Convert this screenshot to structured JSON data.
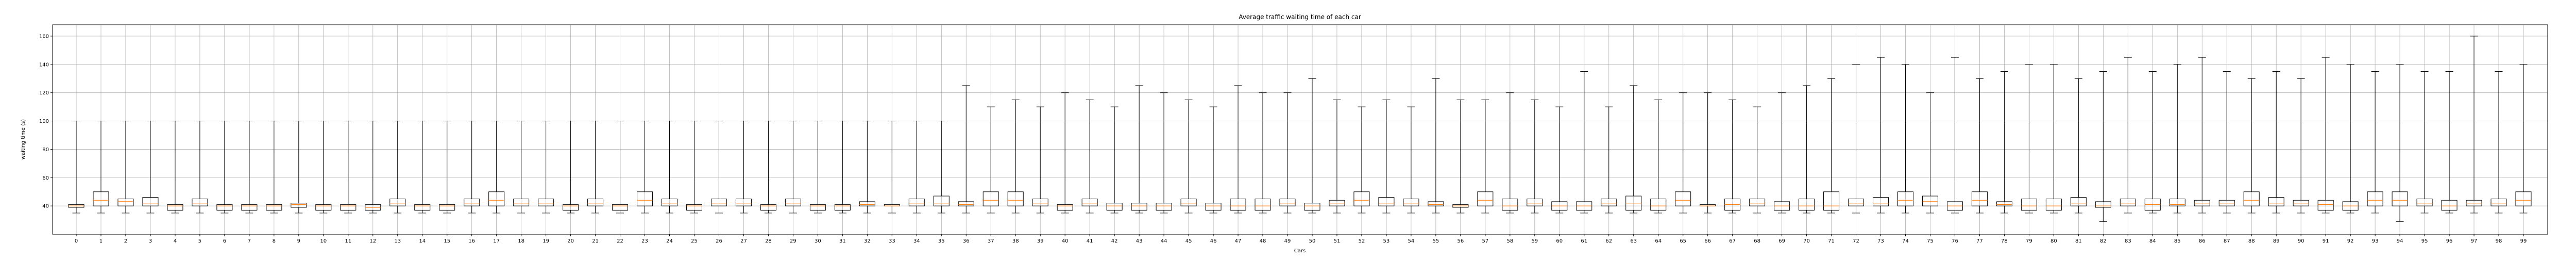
{
  "chart_data": {
    "type": "boxplot",
    "title": "Average traffic waiting time of each car",
    "xlabel": "Cars",
    "ylabel": "waiting time (s)",
    "ylim": [
      20,
      168
    ],
    "yticks": [
      40,
      60,
      80,
      100,
      120,
      140,
      160
    ],
    "grid": true,
    "categories": [
      "0",
      "1",
      "2",
      "3",
      "4",
      "5",
      "6",
      "7",
      "8",
      "9",
      "10",
      "11",
      "12",
      "13",
      "14",
      "15",
      "16",
      "17",
      "18",
      "19",
      "20",
      "21",
      "22",
      "23",
      "24",
      "25",
      "26",
      "27",
      "28",
      "29",
      "30",
      "31",
      "32",
      "33",
      "34",
      "35",
      "36",
      "37",
      "38",
      "39",
      "40",
      "41",
      "42",
      "43",
      "44",
      "45",
      "46",
      "47",
      "48",
      "49",
      "50",
      "51",
      "52",
      "53",
      "54",
      "55",
      "56",
      "57",
      "58",
      "59",
      "60",
      "61",
      "62",
      "63",
      "64",
      "65",
      "66",
      "67",
      "68",
      "69",
      "70",
      "71",
      "72",
      "73",
      "74",
      "75",
      "76",
      "77",
      "78",
      "79",
      "80",
      "81",
      "82",
      "83",
      "84",
      "85",
      "86",
      "87",
      "88",
      "89",
      "90",
      "91",
      "92",
      "93",
      "94",
      "95",
      "96",
      "97",
      "98",
      "99"
    ],
    "boxes": [
      {
        "whislo": 35,
        "q1": 39,
        "med": 40,
        "q3": 41,
        "whishi": 100
      },
      {
        "whislo": 35,
        "q1": 40,
        "med": 44,
        "q3": 50,
        "whishi": 100
      },
      {
        "whislo": 35,
        "q1": 40,
        "med": 43,
        "q3": 45,
        "whishi": 100
      },
      {
        "whislo": 35,
        "q1": 40,
        "med": 42,
        "q3": 46,
        "whishi": 100
      },
      {
        "whislo": 35,
        "q1": 37,
        "med": 40,
        "q3": 41,
        "whishi": 100
      },
      {
        "whislo": 35,
        "q1": 40,
        "med": 42,
        "q3": 45,
        "whishi": 100
      },
      {
        "whislo": 35,
        "q1": 37,
        "med": 40,
        "q3": 41,
        "whishi": 100
      },
      {
        "whislo": 35,
        "q1": 37,
        "med": 40,
        "q3": 41,
        "whishi": 100
      },
      {
        "whislo": 35,
        "q1": 37,
        "med": 40,
        "q3": 41,
        "whishi": 100
      },
      {
        "whislo": 35,
        "q1": 39,
        "med": 41,
        "q3": 42,
        "whishi": 100
      },
      {
        "whislo": 35,
        "q1": 37,
        "med": 40,
        "q3": 41,
        "whishi": 100
      },
      {
        "whislo": 35,
        "q1": 37,
        "med": 40,
        "q3": 41,
        "whishi": 100
      },
      {
        "whislo": 35,
        "q1": 37,
        "med": 39,
        "q3": 41,
        "whishi": 100
      },
      {
        "whislo": 35,
        "q1": 40,
        "med": 42,
        "q3": 45,
        "whishi": 100
      },
      {
        "whislo": 35,
        "q1": 37,
        "med": 40,
        "q3": 41,
        "whishi": 100
      },
      {
        "whislo": 35,
        "q1": 37,
        "med": 40,
        "q3": 41,
        "whishi": 100
      },
      {
        "whislo": 35,
        "q1": 40,
        "med": 42,
        "q3": 45,
        "whishi": 100
      },
      {
        "whislo": 35,
        "q1": 40,
        "med": 44,
        "q3": 50,
        "whishi": 100
      },
      {
        "whislo": 35,
        "q1": 40,
        "med": 42,
        "q3": 45,
        "whishi": 100
      },
      {
        "whislo": 35,
        "q1": 40,
        "med": 42,
        "q3": 45,
        "whishi": 100
      },
      {
        "whislo": 35,
        "q1": 37,
        "med": 40,
        "q3": 41,
        "whishi": 100
      },
      {
        "whislo": 35,
        "q1": 40,
        "med": 42,
        "q3": 45,
        "whishi": 100
      },
      {
        "whislo": 35,
        "q1": 37,
        "med": 40,
        "q3": 41,
        "whishi": 100
      },
      {
        "whislo": 35,
        "q1": 40,
        "med": 44,
        "q3": 50,
        "whishi": 100
      },
      {
        "whislo": 35,
        "q1": 40,
        "med": 42,
        "q3": 45,
        "whishi": 100
      },
      {
        "whislo": 35,
        "q1": 37,
        "med": 40,
        "q3": 41,
        "whishi": 100
      },
      {
        "whislo": 35,
        "q1": 40,
        "med": 42,
        "q3": 45,
        "whishi": 100
      },
      {
        "whislo": 35,
        "q1": 40,
        "med": 42,
        "q3": 45,
        "whishi": 100
      },
      {
        "whislo": 35,
        "q1": 37,
        "med": 40,
        "q3": 41,
        "whishi": 100
      },
      {
        "whislo": 35,
        "q1": 40,
        "med": 42,
        "q3": 45,
        "whishi": 100
      },
      {
        "whislo": 35,
        "q1": 37,
        "med": 40,
        "q3": 41,
        "whishi": 100
      },
      {
        "whislo": 35,
        "q1": 37,
        "med": 40,
        "q3": 41,
        "whishi": 100
      },
      {
        "whislo": 35,
        "q1": 40,
        "med": 41,
        "q3": 43,
        "whishi": 100
      },
      {
        "whislo": 35,
        "q1": 40,
        "med": 40,
        "q3": 41,
        "whishi": 100
      },
      {
        "whislo": 35,
        "q1": 40,
        "med": 42,
        "q3": 45,
        "whishi": 100
      },
      {
        "whislo": 35,
        "q1": 40,
        "med": 42,
        "q3": 47,
        "whishi": 100
      },
      {
        "whislo": 35,
        "q1": 40,
        "med": 41,
        "q3": 43,
        "whishi": 125
      },
      {
        "whislo": 35,
        "q1": 40,
        "med": 44,
        "q3": 50,
        "whishi": 110
      },
      {
        "whislo": 35,
        "q1": 40,
        "med": 44,
        "q3": 50,
        "whishi": 115
      },
      {
        "whislo": 35,
        "q1": 40,
        "med": 42,
        "q3": 45,
        "whishi": 110
      },
      {
        "whislo": 35,
        "q1": 37,
        "med": 40,
        "q3": 41,
        "whishi": 120
      },
      {
        "whislo": 35,
        "q1": 40,
        "med": 42,
        "q3": 45,
        "whishi": 115
      },
      {
        "whislo": 35,
        "q1": 37,
        "med": 40,
        "q3": 42,
        "whishi": 110
      },
      {
        "whislo": 35,
        "q1": 37,
        "med": 40,
        "q3": 42,
        "whishi": 125
      },
      {
        "whislo": 35,
        "q1": 37,
        "med": 40,
        "q3": 42,
        "whishi": 120
      },
      {
        "whislo": 35,
        "q1": 40,
        "med": 42,
        "q3": 45,
        "whishi": 115
      },
      {
        "whislo": 35,
        "q1": 37,
        "med": 40,
        "q3": 42,
        "whishi": 110
      },
      {
        "whislo": 35,
        "q1": 37,
        "med": 40,
        "q3": 45,
        "whishi": 125
      },
      {
        "whislo": 35,
        "q1": 37,
        "med": 40,
        "q3": 45,
        "whishi": 120
      },
      {
        "whislo": 35,
        "q1": 40,
        "med": 42,
        "q3": 45,
        "whishi": 120
      },
      {
        "whislo": 35,
        "q1": 37,
        "med": 40,
        "q3": 42,
        "whishi": 130
      },
      {
        "whislo": 35,
        "q1": 40,
        "med": 42,
        "q3": 44,
        "whishi": 115
      },
      {
        "whislo": 35,
        "q1": 40,
        "med": 44,
        "q3": 50,
        "whishi": 110
      },
      {
        "whislo": 35,
        "q1": 40,
        "med": 42,
        "q3": 46,
        "whishi": 115
      },
      {
        "whislo": 35,
        "q1": 40,
        "med": 42,
        "q3": 45,
        "whishi": 110
      },
      {
        "whislo": 35,
        "q1": 40,
        "med": 41,
        "q3": 43,
        "whishi": 130
      },
      {
        "whislo": 35,
        "q1": 39,
        "med": 40,
        "q3": 41,
        "whishi": 115
      },
      {
        "whislo": 35,
        "q1": 40,
        "med": 44,
        "q3": 50,
        "whishi": 115
      },
      {
        "whislo": 35,
        "q1": 37,
        "med": 40,
        "q3": 45,
        "whishi": 120
      },
      {
        "whislo": 35,
        "q1": 40,
        "med": 42,
        "q3": 45,
        "whishi": 115
      },
      {
        "whislo": 35,
        "q1": 37,
        "med": 40,
        "q3": 43,
        "whishi": 110
      },
      {
        "whislo": 35,
        "q1": 37,
        "med": 40,
        "q3": 43,
        "whishi": 135
      },
      {
        "whislo": 35,
        "q1": 40,
        "med": 42,
        "q3": 45,
        "whishi": 110
      },
      {
        "whislo": 35,
        "q1": 37,
        "med": 42,
        "q3": 47,
        "whishi": 125
      },
      {
        "whislo": 35,
        "q1": 37,
        "med": 40,
        "q3": 45,
        "whishi": 115
      },
      {
        "whislo": 35,
        "q1": 40,
        "med": 44,
        "q3": 50,
        "whishi": 120
      },
      {
        "whislo": 35,
        "q1": 40,
        "med": 40,
        "q3": 41,
        "whishi": 120
      },
      {
        "whislo": 35,
        "q1": 37,
        "med": 41,
        "q3": 45,
        "whishi": 115
      },
      {
        "whislo": 35,
        "q1": 40,
        "med": 42,
        "q3": 45,
        "whishi": 110
      },
      {
        "whislo": 35,
        "q1": 37,
        "med": 40,
        "q3": 43,
        "whishi": 120
      },
      {
        "whislo": 35,
        "q1": 37,
        "med": 40,
        "q3": 45,
        "whishi": 125
      },
      {
        "whislo": 35,
        "q1": 37,
        "med": 40,
        "q3": 50,
        "whishi": 130
      },
      {
        "whislo": 35,
        "q1": 40,
        "med": 42,
        "q3": 45,
        "whishi": 140
      },
      {
        "whislo": 35,
        "q1": 40,
        "med": 42,
        "q3": 46,
        "whishi": 145
      },
      {
        "whislo": 35,
        "q1": 40,
        "med": 44,
        "q3": 50,
        "whishi": 140
      },
      {
        "whislo": 35,
        "q1": 40,
        "med": 43,
        "q3": 47,
        "whishi": 120
      },
      {
        "whislo": 35,
        "q1": 37,
        "med": 40,
        "q3": 43,
        "whishi": 145
      },
      {
        "whislo": 35,
        "q1": 40,
        "med": 44,
        "q3": 50,
        "whishi": 130
      },
      {
        "whislo": 35,
        "q1": 40,
        "med": 41,
        "q3": 43,
        "whishi": 135
      },
      {
        "whislo": 35,
        "q1": 37,
        "med": 40,
        "q3": 45,
        "whishi": 140
      },
      {
        "whislo": 35,
        "q1": 37,
        "med": 40,
        "q3": 45,
        "whishi": 140
      },
      {
        "whislo": 35,
        "q1": 40,
        "med": 42,
        "q3": 46,
        "whishi": 130
      },
      {
        "whislo": 29,
        "q1": 39,
        "med": 40,
        "q3": 43,
        "whishi": 135
      },
      {
        "whislo": 35,
        "q1": 40,
        "med": 42,
        "q3": 45,
        "whishi": 145
      },
      {
        "whislo": 35,
        "q1": 37,
        "med": 41,
        "q3": 45,
        "whishi": 135
      },
      {
        "whislo": 35,
        "q1": 40,
        "med": 41,
        "q3": 45,
        "whishi": 140
      },
      {
        "whislo": 35,
        "q1": 40,
        "med": 42,
        "q3": 44,
        "whishi": 145
      },
      {
        "whislo": 35,
        "q1": 40,
        "med": 42,
        "q3": 44,
        "whishi": 135
      },
      {
        "whislo": 35,
        "q1": 40,
        "med": 44,
        "q3": 50,
        "whishi": 130
      },
      {
        "whislo": 35,
        "q1": 40,
        "med": 42,
        "q3": 46,
        "whishi": 135
      },
      {
        "whislo": 35,
        "q1": 40,
        "med": 42,
        "q3": 44,
        "whishi": 130
      },
      {
        "whislo": 35,
        "q1": 37,
        "med": 41,
        "q3": 44,
        "whishi": 145
      },
      {
        "whislo": 35,
        "q1": 37,
        "med": 40,
        "q3": 43,
        "whishi": 140
      },
      {
        "whislo": 35,
        "q1": 40,
        "med": 44,
        "q3": 50,
        "whishi": 135
      },
      {
        "whislo": 29,
        "q1": 40,
        "med": 44,
        "q3": 50,
        "whishi": 140
      },
      {
        "whislo": 35,
        "q1": 40,
        "med": 42,
        "q3": 45,
        "whishi": 135
      },
      {
        "whislo": 35,
        "q1": 37,
        "med": 40,
        "q3": 44,
        "whishi": 135
      },
      {
        "whislo": 35,
        "q1": 40,
        "med": 42,
        "q3": 44,
        "whishi": 160
      },
      {
        "whislo": 35,
        "q1": 40,
        "med": 42,
        "q3": 45,
        "whishi": 135
      },
      {
        "whislo": 35,
        "q1": 40,
        "med": 44,
        "q3": 50,
        "whishi": 140
      }
    ]
  }
}
